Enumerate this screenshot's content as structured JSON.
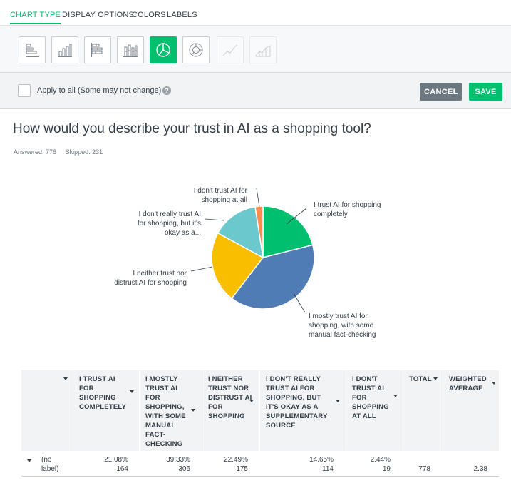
{
  "tabs": [
    {
      "label": "CHART TYPE",
      "active": true
    },
    {
      "label": "DISPLAY OPTIONS",
      "active": false
    },
    {
      "label": "COLORS",
      "active": false
    },
    {
      "label": "LABELS",
      "active": false
    }
  ],
  "chart_types": [
    {
      "icon": "horizontal-bar-icon",
      "state": "normal"
    },
    {
      "icon": "vertical-bar-icon",
      "state": "normal"
    },
    {
      "icon": "stacked-horizontal-bar-icon",
      "state": "normal"
    },
    {
      "icon": "stacked-vertical-bar-icon",
      "state": "normal"
    },
    {
      "icon": "pie-chart-icon",
      "state": "active"
    },
    {
      "icon": "donut-chart-icon",
      "state": "normal"
    },
    {
      "icon": "line-chart-icon",
      "state": "disabled"
    },
    {
      "icon": "area-chart-icon",
      "state": "disabled"
    }
  ],
  "apply": {
    "label": "Apply to all (Some may not change)",
    "help": "?"
  },
  "buttons": {
    "cancel": "CANCEL",
    "save": "SAVE"
  },
  "question": {
    "title": "How would you describe your trust in AI as a shopping tool?",
    "answered": "Answered: 778",
    "skipped": "Skipped: 231"
  },
  "colors": {
    "green": "#00bf6f",
    "blue": "#507cb6",
    "yellow": "#f9be00",
    "teal": "#6bc8cd",
    "orange": "#ff8b4f",
    "header_bg": "#f2f3f5"
  },
  "chart_data": {
    "type": "pie",
    "slices": [
      {
        "label": [
          "I trust AI for shopping",
          "completely"
        ],
        "value": 21.08,
        "color": "#00bf6f"
      },
      {
        "label": [
          "I mostly trust AI for",
          "shopping, with some",
          "manual fact-checking"
        ],
        "value": 39.33,
        "color": "#507cb6"
      },
      {
        "label": [
          "I neither trust nor",
          "distrust AI for shopping"
        ],
        "value": 22.49,
        "color": "#f9be00"
      },
      {
        "label": [
          "I don't really trust AI",
          "for shopping, but it's",
          "okay as a..."
        ],
        "value": 14.65,
        "color": "#6bc8cd"
      },
      {
        "label": [
          "I don't trust AI for",
          "shopping at all"
        ],
        "value": 2.44,
        "color": "#ff8b4f"
      }
    ]
  },
  "table": {
    "headers": [
      "I TRUST AI FOR SHOPPING COMPLETELY",
      "I MOSTLY TRUST AI FOR SHOPPING, WITH SOME MANUAL FACT-CHECKING",
      "I NEITHER TRUST NOR DISTRUST AI FOR SHOPPING",
      "I DON'T REALLY TRUST AI FOR SHOPPING, BUT IT'S OKAY AS A SUPPLEMENTARY SOURCE",
      "I DON'T TRUST AI FOR SHOPPING AT ALL",
      "TOTAL",
      "WEIGHTED AVERAGE"
    ],
    "row": {
      "label": "(no label)",
      "percents": [
        "21.08%",
        "39.33%",
        "22.49%",
        "14.65%",
        "2.44%"
      ],
      "counts": [
        "164",
        "306",
        "175",
        "114",
        "19"
      ],
      "total": "778",
      "weighted_average": "2.38"
    }
  }
}
